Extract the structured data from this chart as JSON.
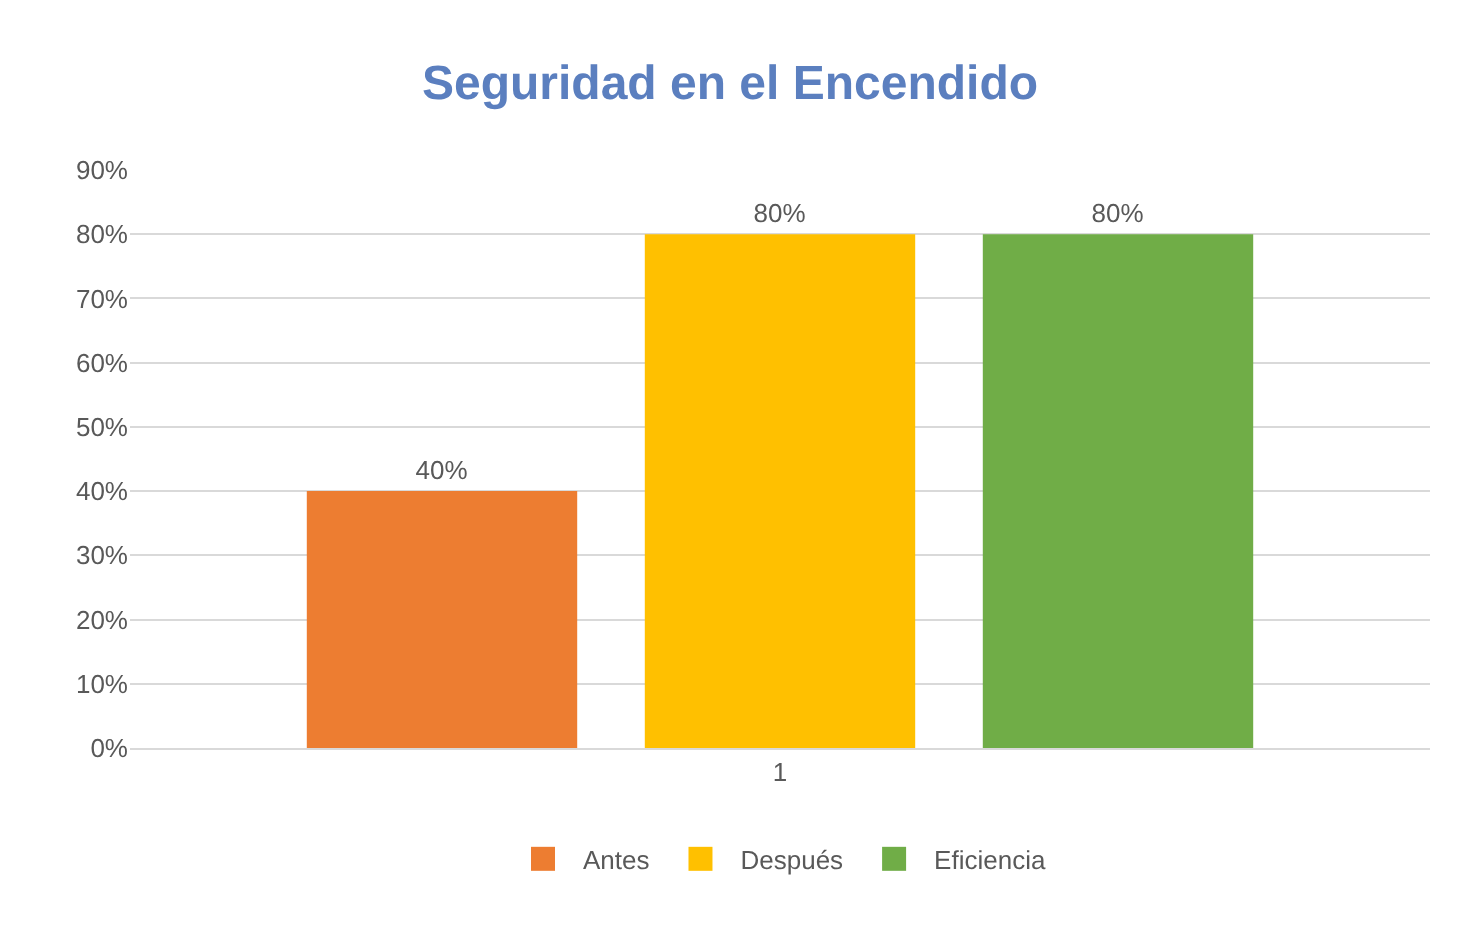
{
  "chart_data": {
    "type": "bar",
    "title": "Seguridad en el Encendido",
    "categories": [
      "1"
    ],
    "series": [
      {
        "name": "Antes",
        "color": "#ed7d31",
        "values": [
          40
        ],
        "value_labels": [
          "40%"
        ]
      },
      {
        "name": "Después",
        "color": "#ffc000",
        "values": [
          80
        ],
        "value_labels": [
          "80%"
        ]
      },
      {
        "name": "Eficiencia",
        "color": "#70ad47",
        "values": [
          80
        ],
        "value_labels": [
          "80%"
        ]
      }
    ],
    "ylim": [
      0,
      90
    ],
    "yticks": [
      {
        "value": 0,
        "label": "0%"
      },
      {
        "value": 10,
        "label": "10%"
      },
      {
        "value": 20,
        "label": "20%"
      },
      {
        "value": 30,
        "label": "30%"
      },
      {
        "value": 40,
        "label": "40%"
      },
      {
        "value": 50,
        "label": "50%"
      },
      {
        "value": 60,
        "label": "60%"
      },
      {
        "value": 70,
        "label": "70%"
      },
      {
        "value": 80,
        "label": "80%"
      },
      {
        "value": 90,
        "label": "90%"
      }
    ],
    "grid": "y",
    "legend": "bottom"
  }
}
